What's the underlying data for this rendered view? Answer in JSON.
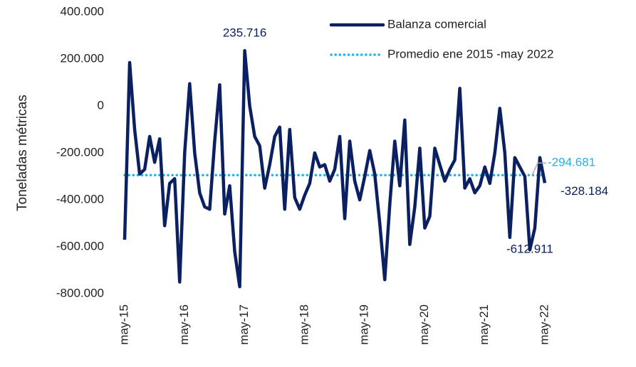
{
  "chart_data": {
    "type": "line",
    "y_label": "Toneladas métricas",
    "categories": [
      "may-15",
      null,
      null,
      null,
      null,
      null,
      null,
      null,
      null,
      null,
      null,
      null,
      "may-16",
      null,
      null,
      null,
      null,
      null,
      null,
      null,
      null,
      null,
      null,
      null,
      "may-17",
      null,
      null,
      null,
      null,
      null,
      null,
      null,
      null,
      null,
      null,
      null,
      "may-18",
      null,
      null,
      null,
      null,
      null,
      null,
      null,
      null,
      null,
      null,
      null,
      "may-19",
      null,
      null,
      null,
      null,
      null,
      null,
      null,
      null,
      null,
      null,
      null,
      "may-20",
      null,
      null,
      null,
      null,
      null,
      null,
      null,
      null,
      null,
      null,
      null,
      "may-21",
      null,
      null,
      null,
      null,
      null,
      null,
      null,
      null,
      null,
      null,
      null,
      "may-22"
    ],
    "series": [
      {
        "name": "Balanza comercial",
        "color": "#0b2060",
        "style": "solid",
        "values": [
          -570000,
          185000,
          -100000,
          -290000,
          -270000,
          -130000,
          -240000,
          -140000,
          -510000,
          -330000,
          -310000,
          -750000,
          -200000,
          95000,
          -200000,
          -370000,
          -430000,
          -440000,
          -150000,
          90000,
          -460000,
          -340000,
          -620000,
          -770000,
          235716,
          0,
          -130000,
          -170000,
          -350000,
          -250000,
          -130000,
          -90000,
          -440000,
          -100000,
          -390000,
          -440000,
          -380000,
          -330000,
          -200000,
          -260000,
          -250000,
          -320000,
          -270000,
          -130000,
          -480000,
          -150000,
          -320000,
          -400000,
          -300000,
          -190000,
          -290000,
          -500000,
          -740000,
          -420000,
          -150000,
          -340000,
          -60000,
          -590000,
          -430000,
          -180000,
          -520000,
          -470000,
          -180000,
          -250000,
          -320000,
          -270000,
          -230000,
          75000,
          -350000,
          -310000,
          -370000,
          -340000,
          -260000,
          -330000,
          -200000,
          -10000,
          -200000,
          -560000,
          -220000,
          -260000,
          -300000,
          -612911,
          -520000,
          -220000,
          -328184
        ],
        "value_labels": [
          null,
          null,
          null,
          null,
          null,
          null,
          null,
          null,
          null,
          null,
          null,
          null,
          null,
          null,
          null,
          null,
          null,
          null,
          null,
          null,
          null,
          null,
          null,
          null,
          "235.716",
          null,
          null,
          null,
          null,
          null,
          null,
          null,
          null,
          null,
          null,
          null,
          null,
          null,
          null,
          null,
          null,
          null,
          null,
          null,
          null,
          null,
          null,
          null,
          null,
          null,
          null,
          null,
          null,
          null,
          null,
          null,
          null,
          null,
          null,
          null,
          null,
          null,
          null,
          null,
          null,
          null,
          null,
          null,
          null,
          null,
          null,
          null,
          null,
          null,
          null,
          null,
          null,
          null,
          null,
          null,
          null,
          "-612.911",
          null,
          null,
          "-328.184"
        ]
      },
      {
        "name": "Promedio ene 2015 -may 2022",
        "color": "#1fb5e8",
        "style": "dotted",
        "values": [
          -294681,
          -294681,
          -294681,
          -294681,
          -294681,
          -294681,
          -294681,
          -294681,
          -294681,
          -294681,
          -294681,
          -294681,
          -294681,
          -294681,
          -294681,
          -294681,
          -294681,
          -294681,
          -294681,
          -294681,
          -294681,
          -294681,
          -294681,
          -294681,
          -294681,
          -294681,
          -294681,
          -294681,
          -294681,
          -294681,
          -294681,
          -294681,
          -294681,
          -294681,
          -294681,
          -294681,
          -294681,
          -294681,
          -294681,
          -294681,
          -294681,
          -294681,
          -294681,
          -294681,
          -294681,
          -294681,
          -294681,
          -294681,
          -294681,
          -294681,
          -294681,
          -294681,
          -294681,
          -294681,
          -294681,
          -294681,
          -294681,
          -294681,
          -294681,
          -294681,
          -294681,
          -294681,
          -294681,
          -294681,
          -294681,
          -294681,
          -294681,
          -294681,
          -294681,
          -294681,
          -294681,
          -294681,
          -294681,
          -294681,
          -294681,
          -294681,
          -294681,
          -294681,
          -294681,
          -294681,
          -294681,
          -294681,
          -294681,
          -294681,
          -294681
        ],
        "value_labels": [
          null,
          null,
          null,
          null,
          null,
          null,
          null,
          null,
          null,
          null,
          null,
          null,
          null,
          null,
          null,
          null,
          null,
          null,
          null,
          null,
          null,
          null,
          null,
          null,
          null,
          null,
          null,
          null,
          null,
          null,
          null,
          null,
          null,
          null,
          null,
          null,
          null,
          null,
          null,
          null,
          null,
          null,
          null,
          null,
          null,
          null,
          null,
          null,
          null,
          null,
          null,
          null,
          null,
          null,
          null,
          null,
          null,
          null,
          null,
          null,
          null,
          null,
          null,
          null,
          null,
          null,
          null,
          null,
          null,
          null,
          null,
          null,
          null,
          null,
          null,
          null,
          null,
          null,
          null,
          null,
          null,
          null,
          null,
          null,
          "-294.681"
        ]
      }
    ],
    "ylim": [
      -800000,
      400000
    ],
    "yticks": [
      {
        "value": -800000,
        "label": "-800.000"
      },
      {
        "value": -600000,
        "label": "-600.000"
      },
      {
        "value": -400000,
        "label": "-400.000"
      },
      {
        "value": -200000,
        "label": "-200.000"
      },
      0,
      {
        "value": 200000,
        "label": "200.000"
      },
      {
        "value": 400000,
        "label": "400.000"
      }
    ],
    "legend": "top-right"
  }
}
